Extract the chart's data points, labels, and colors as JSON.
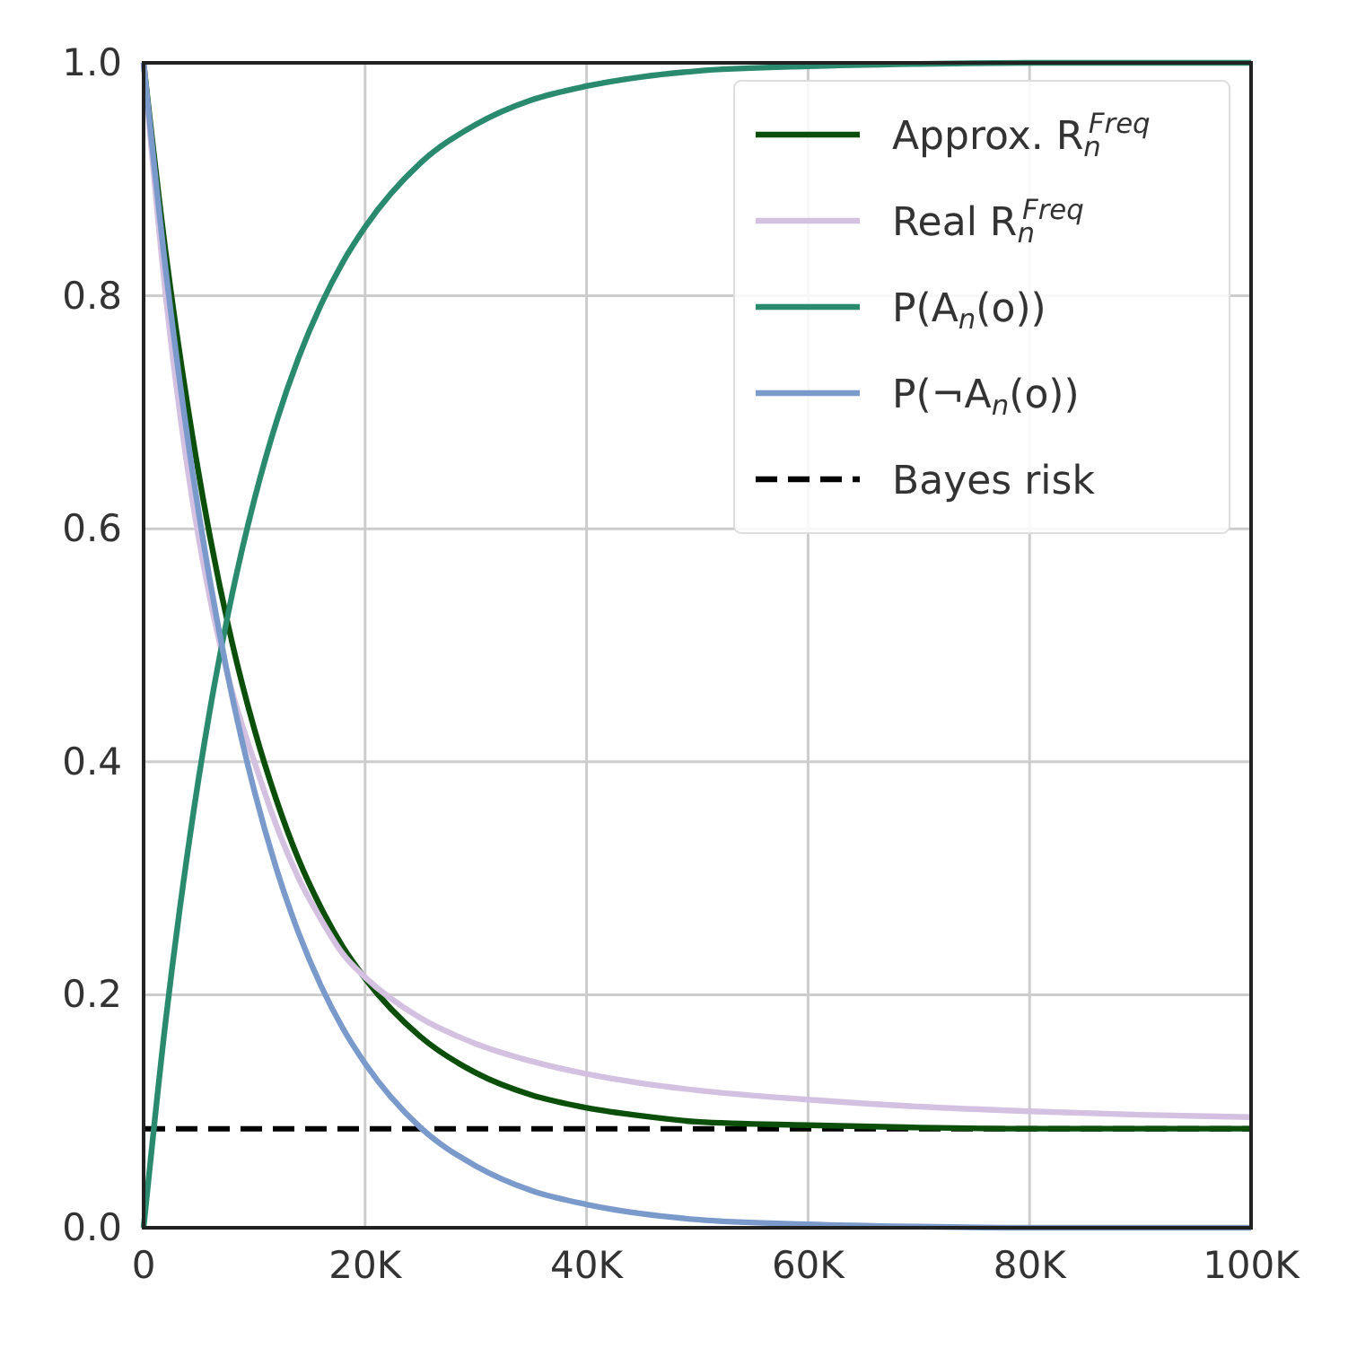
{
  "chart_data": {
    "type": "line",
    "x": [
      0,
      2000,
      4000,
      6000,
      8000,
      10000,
      12000,
      14000,
      16000,
      18000,
      20000,
      25000,
      30000,
      35000,
      40000,
      45000,
      50000,
      60000,
      70000,
      80000,
      90000,
      100000
    ],
    "series": [
      {
        "name": "Approx. R$_{n}$$^{Freq}$",
        "color": "#0b4f0b",
        "values": [
          1,
          0.837,
          0.704,
          0.593,
          0.502,
          0.428,
          0.367,
          0.316,
          0.275,
          0.241,
          0.214,
          0.164,
          0.133,
          0.114,
          0.103,
          0.096,
          0.091,
          0.088,
          0.086,
          0.085,
          0.085,
          0.085
        ]
      },
      {
        "name": "Real R$_{n}$$^{Freq}$",
        "color": "#d4c0e0",
        "values": [
          1,
          0.8,
          0.65,
          0.54,
          0.46,
          0.4,
          0.345,
          0.3,
          0.265,
          0.235,
          0.215,
          0.18,
          0.158,
          0.143,
          0.132,
          0.124,
          0.118,
          0.11,
          0.104,
          0.1,
          0.097,
          0.095
        ]
      },
      {
        "name": "P(A$_{n}$(o))",
        "color": "#2a8a6e",
        "values": [
          0,
          0.178,
          0.324,
          0.445,
          0.544,
          0.625,
          0.692,
          0.747,
          0.792,
          0.829,
          0.859,
          0.914,
          0.947,
          0.968,
          0.98,
          0.988,
          0.993,
          0.997,
          0.999,
          1,
          1,
          1
        ]
      },
      {
        "name": "P(¬A$_{n}$(o))",
        "color": "#7b9acc",
        "values": [
          1,
          0.822,
          0.676,
          0.555,
          0.456,
          0.375,
          0.308,
          0.253,
          0.208,
          0.171,
          0.141,
          0.086,
          0.053,
          0.032,
          0.02,
          0.012,
          0.007,
          0.003,
          0.001,
          0,
          0,
          0
        ]
      }
    ],
    "ref_lines": [
      {
        "axis": "y",
        "value": 0.085,
        "label": "Bayes risk",
        "color": "#000000",
        "line_style": "dashed"
      }
    ],
    "xlim": [
      0,
      100000
    ],
    "xticks": [
      0,
      {
        "value": 20000,
        "label": "20K"
      },
      {
        "value": 40000,
        "label": "40K"
      },
      {
        "value": 60000,
        "label": "60K"
      },
      {
        "value": 80000,
        "label": "80K"
      },
      {
        "value": 100000,
        "label": "100K"
      }
    ],
    "ylim": [
      0,
      1
    ],
    "yticks": [
      {
        "value": 0,
        "label": "0.0"
      },
      {
        "value": 0.2,
        "label": "0.2"
      },
      {
        "value": 0.4,
        "label": "0.4"
      },
      {
        "value": 0.6,
        "label": "0.6"
      },
      {
        "value": 0.8,
        "label": "0.8"
      },
      {
        "value": 1,
        "label": "1.0"
      }
    ],
    "grid": true,
    "legend": "top right",
    "marker": "none",
    "line_style": "solid"
  }
}
